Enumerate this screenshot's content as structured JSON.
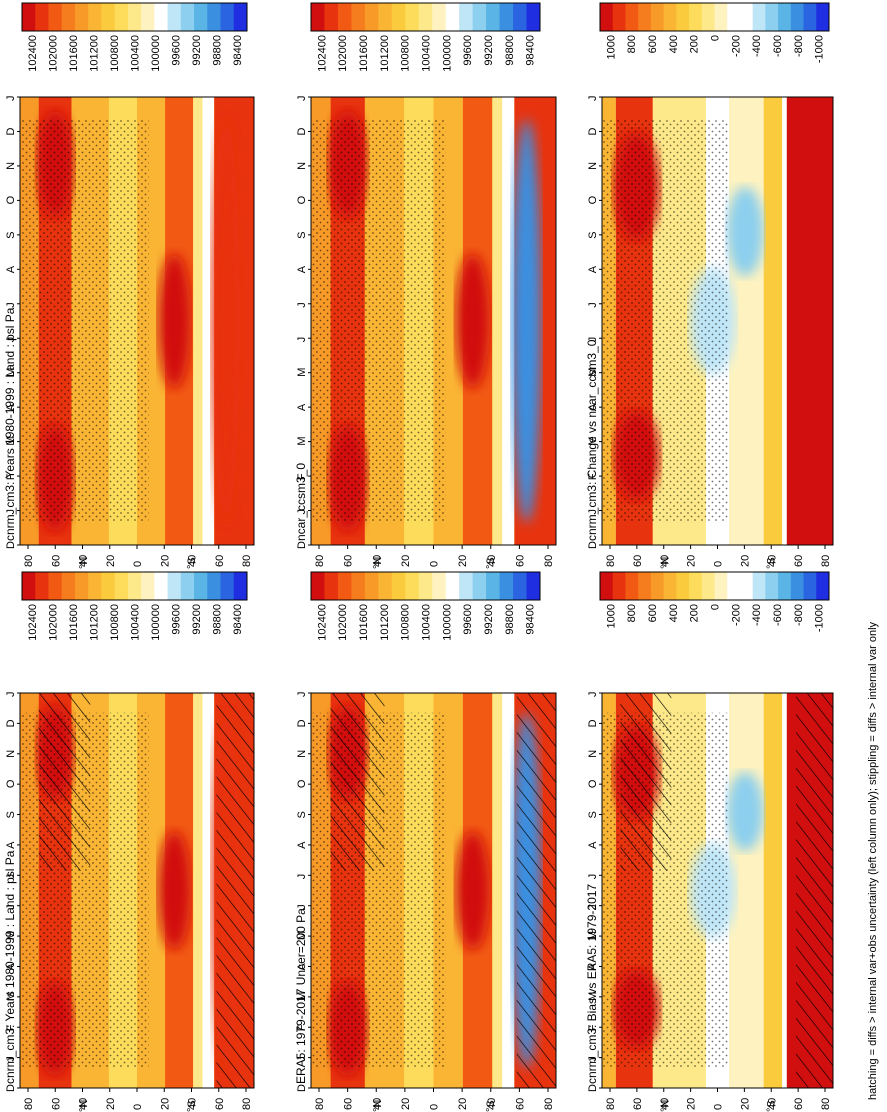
{
  "figure": {
    "footnote": "hatching = diffs > internal var+obs uncertainty (left column only); stippling = diffs > internal var only",
    "colors": {
      "absolute": [
        "#d10f0f",
        "#e8330f",
        "#f25a14",
        "#f57d1e",
        "#f89a28",
        "#fab534",
        "#fbcb3e",
        "#fcdc5a",
        "#fde98a",
        "#fef3c0",
        "#ffffff",
        "#bfe6f7",
        "#8ccfee",
        "#5ab4e6",
        "#3a8fe0",
        "#2a64e0",
        "#1f2ee0"
      ],
      "difference": [
        "#d10f0f",
        "#e8330f",
        "#f25a14",
        "#f57d1e",
        "#f89a28",
        "#fab534",
        "#fbcb3e",
        "#fcdc5a",
        "#fde98a",
        "#fef3c0",
        "#ffffff",
        "#ffffff",
        "#bfe6f7",
        "#8ccfee",
        "#5ab4e6",
        "#3a8fe0",
        "#2a64e0",
        "#1f2ee0"
      ]
    }
  },
  "chart_data": [
    {
      "type": "heatmap",
      "title": "cnrm_cm3: Years 1980-1999 : Land : psl Pa",
      "x_categories": [
        "D",
        "J",
        "F",
        "M",
        "A",
        "M",
        "J",
        "J",
        "A",
        "S",
        "O",
        "N",
        "D",
        "J"
      ],
      "y_ticks": [
        "80",
        "60",
        "40",
        "20",
        "0",
        "20",
        "40",
        "60",
        "80"
      ],
      "y_unit_labels": [
        "°N",
        "°S"
      ],
      "colorbar_ticks": [
        "102400",
        "102000",
        "101600",
        "101200",
        "100800",
        "100400",
        "100000",
        "99600",
        "99200",
        "98800",
        "98400"
      ],
      "hatching": true,
      "stippling": true
    },
    {
      "type": "heatmap",
      "title": "ERA5: 1979-2017 Uncer=200 Pa",
      "x_categories": [
        "D",
        "J",
        "F",
        "M",
        "A",
        "M",
        "J",
        "J",
        "A",
        "S",
        "O",
        "N",
        "D",
        "J"
      ],
      "y_ticks": [
        "80",
        "60",
        "40",
        "20",
        "0",
        "20",
        "40",
        "60",
        "80"
      ],
      "y_unit_labels": [
        "°N",
        "°S"
      ],
      "colorbar_ticks": [
        "102400",
        "102000",
        "101600",
        "101200",
        "100800",
        "100400",
        "100000",
        "99600",
        "99200",
        "98800",
        "98400"
      ],
      "hatching": true,
      "stippling": true
    },
    {
      "type": "heatmap",
      "title": "cnrm_cm3: Bias vs ERA5: 1979-2017",
      "x_categories": [
        "D",
        "J",
        "F",
        "M",
        "A",
        "M",
        "J",
        "J",
        "A",
        "S",
        "O",
        "N",
        "D",
        "J"
      ],
      "y_ticks": [
        "80",
        "60",
        "40",
        "20",
        "0",
        "20",
        "40",
        "60",
        "80"
      ],
      "y_unit_labels": [
        "°N",
        "°S"
      ],
      "colorbar_ticks": [
        "1000",
        "800",
        "600",
        "400",
        "200",
        "0",
        "-200",
        "-400",
        "-600",
        "-800",
        "-1000"
      ],
      "hatching": true,
      "stippling": true
    },
    {
      "type": "heatmap",
      "title": "cnrm_cm3: Years 1980-1999 : Land : psl Pa",
      "x_categories": [
        "D",
        "J",
        "F",
        "M",
        "A",
        "M",
        "J",
        "J",
        "A",
        "S",
        "O",
        "N",
        "D",
        "J"
      ],
      "y_ticks": [
        "80",
        "60",
        "40",
        "20",
        "0",
        "20",
        "40",
        "60",
        "80"
      ],
      "y_unit_labels": [
        "°N",
        "°S"
      ],
      "colorbar_ticks": [
        "102400",
        "102000",
        "101600",
        "101200",
        "100800",
        "100400",
        "100000",
        "99600",
        "99200",
        "98800",
        "98400"
      ],
      "hatching": false,
      "stippling": true
    },
    {
      "type": "heatmap",
      "title": "ncar_ccsm3_0",
      "x_categories": [
        "D",
        "J",
        "F",
        "M",
        "A",
        "M",
        "J",
        "J",
        "A",
        "S",
        "O",
        "N",
        "D",
        "J"
      ],
      "y_ticks": [
        "80",
        "60",
        "40",
        "20",
        "0",
        "20",
        "40",
        "60",
        "80"
      ],
      "y_unit_labels": [
        "°N",
        "°S"
      ],
      "colorbar_ticks": [
        "102400",
        "102000",
        "101600",
        "101200",
        "100800",
        "100400",
        "100000",
        "99600",
        "99200",
        "98800",
        "98400"
      ],
      "hatching": false,
      "stippling": true
    },
    {
      "type": "heatmap",
      "title": "cnrm_cm3: Change vs ncar_ccsm3_0",
      "x_categories": [
        "D",
        "J",
        "F",
        "M",
        "A",
        "M",
        "J",
        "J",
        "A",
        "S",
        "O",
        "N",
        "D",
        "J"
      ],
      "y_ticks": [
        "80",
        "60",
        "40",
        "20",
        "0",
        "20",
        "40",
        "60",
        "80"
      ],
      "y_unit_labels": [
        "°N",
        "°S"
      ],
      "colorbar_ticks": [
        "1000",
        "800",
        "600",
        "400",
        "200",
        "0",
        "-200",
        "-400",
        "-600",
        "-800",
        "-1000"
      ],
      "hatching": false,
      "stippling": true
    }
  ]
}
